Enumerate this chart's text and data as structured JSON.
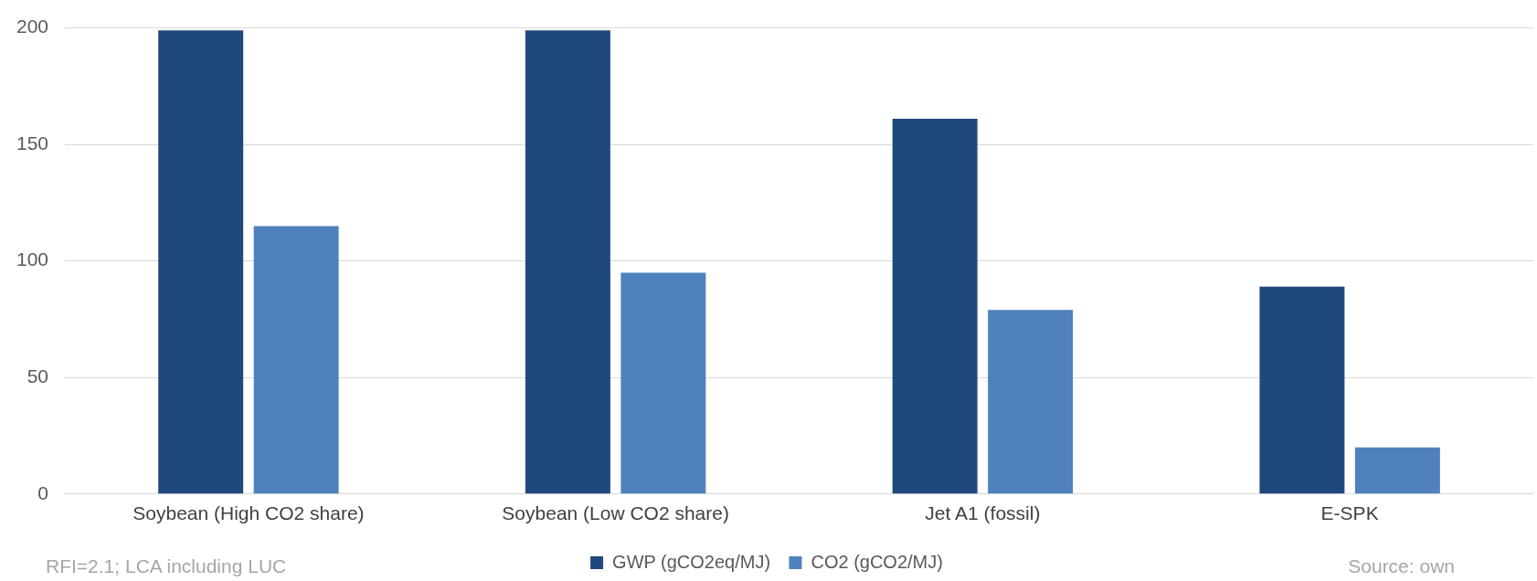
{
  "chart_data": {
    "type": "bar",
    "categories": [
      "Soybean (High CO2 share)",
      "Soybean (Low CO2 share)",
      "Jet A1 (fossil)",
      "E-SPK"
    ],
    "series": [
      {
        "name": "GWP (gCO2eq/MJ)",
        "color": "#1f497d",
        "values": [
          199,
          199,
          161,
          89
        ]
      },
      {
        "name": "CO2 (gCO2/MJ)",
        "color": "#4f81bd",
        "values": [
          115,
          95,
          79,
          20
        ]
      }
    ],
    "ylim": [
      0,
      200
    ],
    "yticks": [
      0,
      50,
      100,
      150,
      200
    ],
    "grid": "y",
    "legend": "bottom",
    "annotations": [
      "RFI=2.1; LCA including LUC",
      "Source: own"
    ]
  }
}
